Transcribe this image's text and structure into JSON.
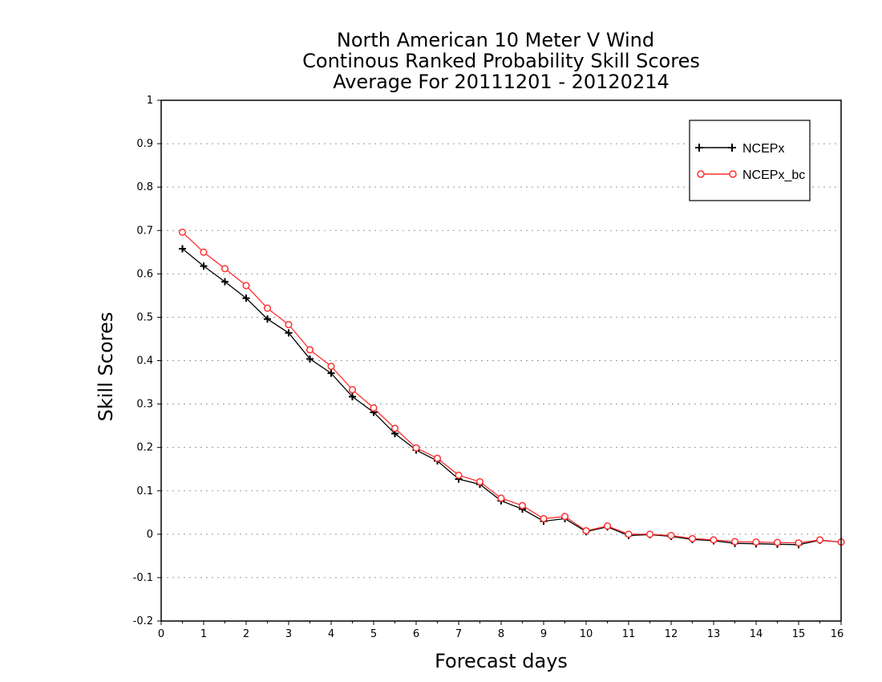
{
  "chart_data": {
    "type": "line",
    "title": [
      "North American 10 Meter V Wind",
      "Continous Ranked Probability Skill Scores",
      "Average For 20111201 - 20120214"
    ],
    "xlabel": "Forecast days",
    "ylabel": "Skill Scores",
    "xlim": [
      0,
      16
    ],
    "ylim": [
      -0.2,
      1
    ],
    "xticks": [
      0,
      1,
      2,
      3,
      4,
      5,
      6,
      7,
      8,
      9,
      10,
      11,
      12,
      13,
      14,
      15,
      16
    ],
    "yticks": [
      -0.2,
      -0.1,
      0,
      0.1,
      0.2,
      0.3,
      0.4,
      0.5,
      0.6,
      0.7,
      0.8,
      0.9,
      1
    ],
    "yticklabels": [
      "-0.2",
      "-0.1",
      "0",
      "0.1",
      "0.2",
      "0.3",
      "0.4",
      "0.5",
      "0.6",
      "0.7",
      "0.8",
      "0.9",
      "1"
    ],
    "grid": "horizontal dotted",
    "legend_position": "top-right",
    "x": [
      0.5,
      1,
      1.5,
      2,
      2.5,
      3,
      3.5,
      4,
      4.5,
      5,
      5.5,
      6,
      6.5,
      7,
      7.5,
      8,
      8.5,
      9,
      9.5,
      10,
      10.5,
      11,
      11.5,
      12,
      12.5,
      13,
      13.5,
      14,
      14.5,
      15,
      15.5,
      16
    ],
    "series": [
      {
        "name": "NCEPx",
        "color": "#000000",
        "marker": "plus",
        "values": [
          0.658,
          0.618,
          0.582,
          0.544,
          0.496,
          0.464,
          0.404,
          0.371,
          0.317,
          0.281,
          0.232,
          0.194,
          0.169,
          0.127,
          0.115,
          0.077,
          0.058,
          0.03,
          0.036,
          0.006,
          0.017,
          -0.003,
          -0.001,
          -0.005,
          -0.012,
          -0.015,
          -0.021,
          -0.022,
          -0.023,
          -0.024,
          -0.014,
          -0.018
        ]
      },
      {
        "name": "NCEPx_bc",
        "color": "#ff3030",
        "marker": "circle",
        "values": [
          0.696,
          0.65,
          0.612,
          0.573,
          0.521,
          0.483,
          0.425,
          0.387,
          0.333,
          0.291,
          0.244,
          0.199,
          0.175,
          0.136,
          0.121,
          0.083,
          0.066,
          0.036,
          0.041,
          0.008,
          0.019,
          0.0,
          0.0,
          -0.003,
          -0.01,
          -0.013,
          -0.017,
          -0.018,
          -0.019,
          -0.02,
          -0.013,
          -0.018
        ]
      }
    ]
  }
}
